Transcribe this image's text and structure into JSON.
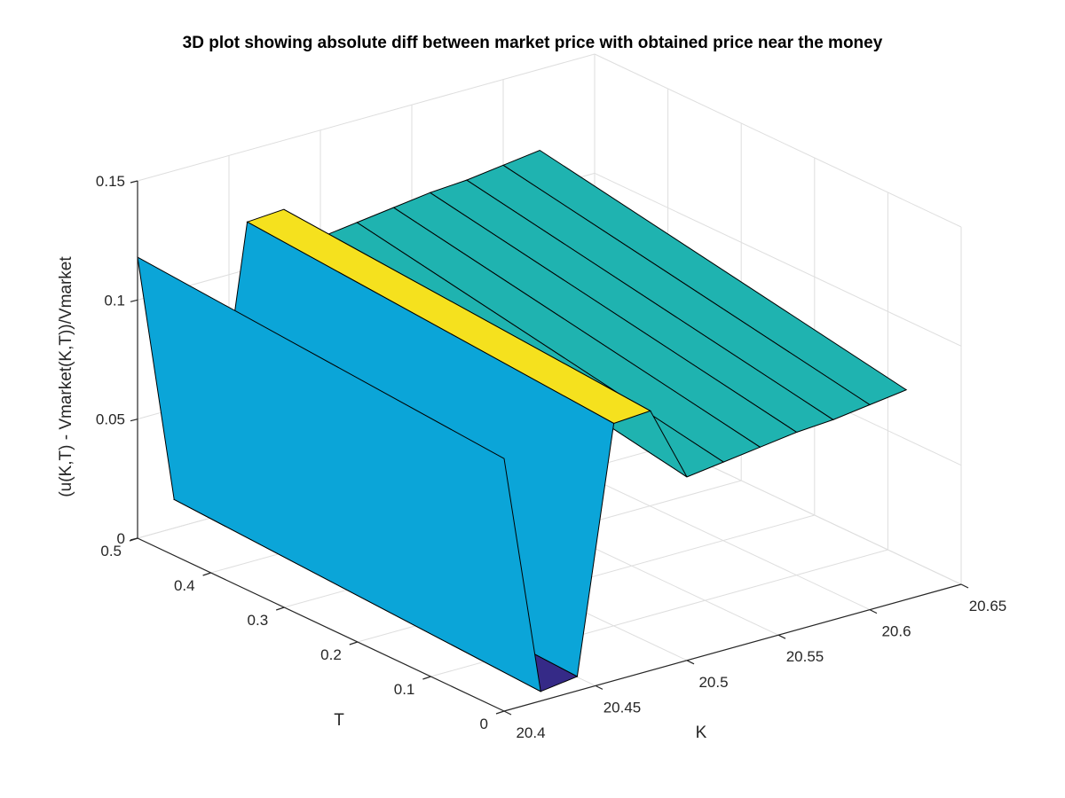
{
  "chart_data": {
    "type": "surface",
    "title": "3D plot showing absolute diff between market price with obtained price near the money",
    "xlabel": "K",
    "ylabel": "T",
    "zlabel": "(u(K,T) - Vmarket(K,T))/Vmarket",
    "xlim": [
      20.4,
      20.65
    ],
    "ylim": [
      0,
      0.5
    ],
    "zlim": [
      0,
      0.15
    ],
    "xticks": [
      "20.4",
      "20.45",
      "20.5",
      "20.55",
      "20.6",
      "20.65"
    ],
    "yticks": [
      "0",
      "0.1",
      "0.2",
      "0.3",
      "0.4",
      "0.5"
    ],
    "zticks": [
      "0",
      "0.05",
      "0.1",
      "0.15"
    ],
    "grid": true,
    "colormap": [
      "#352a87",
      "#2c4fc9",
      "#0ba5d8",
      "#1fb3b0",
      "#f5e11e"
    ],
    "surfaces": [
      {
        "K": [
          20.4,
          20.42,
          20.44,
          20.46,
          20.48,
          20.5,
          20.52,
          20.54,
          20.56,
          20.58,
          20.6,
          20.62
        ],
        "z_at_T0": [
          0.106,
          0.004,
          0.006,
          0.108,
          0.109,
          0.077,
          0.079,
          0.081,
          0.083,
          0.084,
          0.086,
          0.088
        ],
        "z_at_T05": [
          0.118,
          0.012,
          0.014,
          0.12,
          0.121,
          0.105,
          0.107,
          0.109,
          0.111,
          0.112,
          0.114,
          0.116
        ]
      }
    ]
  }
}
